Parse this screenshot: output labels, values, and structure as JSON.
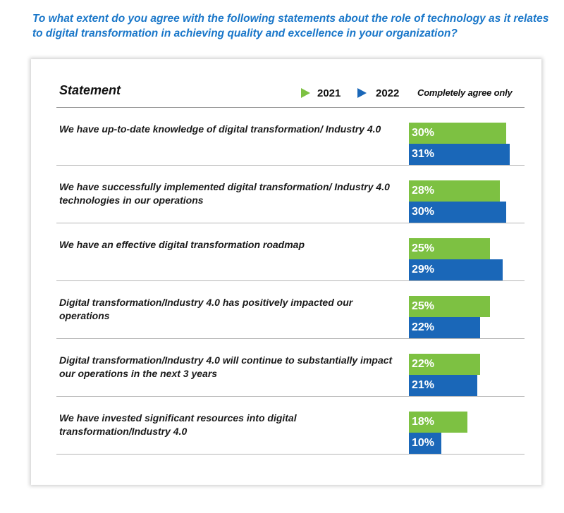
{
  "question": "To what extent do you agree with the following statements about the role of technology as it relates to digital transformation in achieving quality and excellence in your organization?",
  "colors": {
    "series_2021": "#7dc142",
    "series_2022": "#1a67b8",
    "question_text": "#1a77c9"
  },
  "chart_data": {
    "type": "bar",
    "orientation": "horizontal",
    "column_header": "Statement",
    "note": "Completely agree only",
    "categories": [
      "We have up-to-date knowledge of digital transformation/ Industry 4.0",
      "We have successfully implemented digital transformation/ Industry 4.0 technologies in our operations",
      "We have an effective digital transformation roadmap",
      "Digital transformation/Industry 4.0 has positively impacted our operations",
      "Digital transformation/Industry 4.0 will continue to substantially impact our operations in the next 3 years",
      "We have invested significant resources into digital transformation/Industry 4.0"
    ],
    "series": [
      {
        "name": "2021",
        "values": [
          30,
          28,
          25,
          25,
          22,
          18
        ],
        "labels": [
          "30%",
          "28%",
          "25%",
          "25%",
          "22%",
          "18%"
        ]
      },
      {
        "name": "2022",
        "values": [
          31,
          30,
          29,
          22,
          21,
          10
        ],
        "labels": [
          "31%",
          "30%",
          "29%",
          "22%",
          "21%",
          "10%"
        ]
      }
    ],
    "unit": "%"
  }
}
